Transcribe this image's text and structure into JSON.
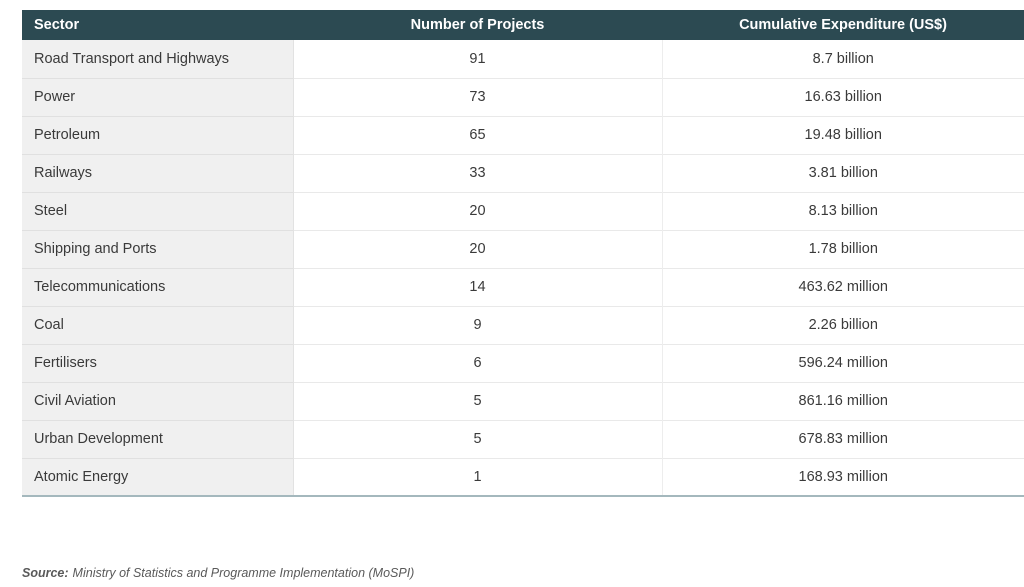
{
  "chart_data": {
    "type": "table",
    "columns": [
      "Sector",
      "Number of Projects",
      "Cumulative Expenditure (US$)"
    ],
    "rows": [
      [
        "Road Transport and Highways",
        "91",
        "8.7 billion"
      ],
      [
        "Power",
        "73",
        "16.63 billion"
      ],
      [
        "Petroleum",
        "65",
        "19.48 billion"
      ],
      [
        "Railways",
        "33",
        "3.81 billion"
      ],
      [
        "Steel",
        "20",
        "8.13 billion"
      ],
      [
        "Shipping and Ports",
        "20",
        "1.78 billion"
      ],
      [
        "Telecommunications",
        "14",
        "463.62 million"
      ],
      [
        "Coal",
        "9",
        "2.26 billion"
      ],
      [
        "Fertilisers",
        "6",
        "596.24 million"
      ],
      [
        "Civil Aviation",
        "5",
        "861.16 million"
      ],
      [
        "Urban Development",
        "5",
        "678.83 million"
      ],
      [
        "Atomic Energy",
        "1",
        "168.93 million"
      ]
    ]
  },
  "source": {
    "label": "Source:",
    "text": "Ministry of Statistics and Programme Implementation (MoSPI)"
  },
  "colors": {
    "header_bg": "#2c4a52",
    "header_text": "#ffffff",
    "first_column_bg": "#f0f0f0",
    "row_divider": "#e9e9e9",
    "table_bottom_border": "#a4b8bd",
    "body_text": "#3a3a3a",
    "source_text": "#595959"
  }
}
